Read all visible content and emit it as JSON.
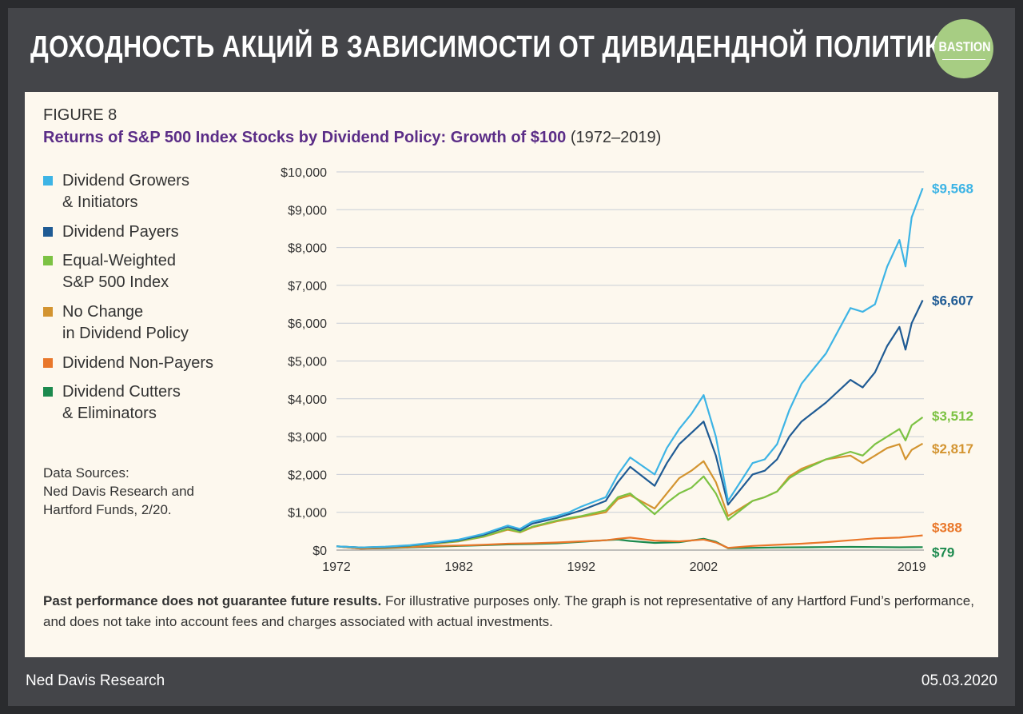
{
  "header": {
    "title": "ДОХОДНОСТЬ АКЦИЙ В ЗАВИСИМОСТИ ОТ ДИВИДЕНДНОЙ ПОЛИТИКИ",
    "logo_text": "BASTION"
  },
  "figure": {
    "label": "FIGURE 8",
    "title": "Returns of S&P 500 Index Stocks by Dividend Policy: Growth of $100",
    "title_range": "(1972–2019)",
    "legend": [
      {
        "line1": "Dividend Growers",
        "line2": "& Initiators",
        "color": "#3db4e5"
      },
      {
        "line1": "Dividend Payers",
        "line2": "",
        "color": "#1f5b94"
      },
      {
        "line1": "Equal-Weighted",
        "line2": "S&P 500 Index",
        "color": "#7cc243"
      },
      {
        "line1": "No Change",
        "line2": "in Dividend Policy",
        "color": "#d39430"
      },
      {
        "line1": "Dividend Non-Payers",
        "line2": "",
        "color": "#e9772a"
      },
      {
        "line1": "Dividend Cutters",
        "line2": "& Eliminators",
        "color": "#1c8a4e"
      }
    ],
    "sources": [
      "Data Sources:",
      "Ned Davis Research and",
      "Hartford Funds, 2/20."
    ],
    "disclaimer_bold": "Past performance does not guarantee future results.",
    "disclaimer_rest": " For illustrative purposes only. The graph is not representative of any Hartford Fund’s performance, and does not take into account fees and charges associated with actual investments."
  },
  "chart_data": {
    "type": "line",
    "title": "Returns of S&P 500 Index Stocks by Dividend Policy: Growth of $100",
    "xlabel": "",
    "ylabel": "",
    "xlim": [
      1972,
      2020
    ],
    "ylim": [
      0,
      10000
    ],
    "x_ticks": [
      1972,
      1982,
      1992,
      2002,
      2019
    ],
    "x_tick_labels": [
      "1972",
      "1982",
      "1992",
      "2002",
      "2019"
    ],
    "y_ticks": [
      0,
      1000,
      2000,
      3000,
      4000,
      5000,
      6000,
      7000,
      8000,
      9000,
      10000
    ],
    "y_tick_labels": [
      "$0",
      "$1,000",
      "$2,000",
      "$3,000",
      "$4,000",
      "$5,000",
      "$6,000",
      "$7,000",
      "$8,000",
      "$9,000",
      "$10,000"
    ],
    "grid": true,
    "legend_position": "left",
    "series": [
      {
        "name": "Dividend Growers & Initiators",
        "color": "#3db4e5",
        "end_label": "$9,568",
        "x": [
          1972,
          1974,
          1976,
          1978,
          1980,
          1982,
          1984,
          1986,
          1987,
          1988,
          1990,
          1991,
          1992,
          1994,
          1995,
          1996,
          1998,
          1999,
          2000,
          2001,
          2002,
          2003,
          2004,
          2006,
          2007,
          2008,
          2009,
          2010,
          2012,
          2014,
          2015,
          2016,
          2017,
          2018,
          2018.5,
          2019,
          2019.9
        ],
        "y": [
          100,
          70,
          90,
          130,
          200,
          280,
          430,
          650,
          560,
          750,
          900,
          1000,
          1150,
          1400,
          2000,
          2450,
          2000,
          2700,
          3200,
          3600,
          4100,
          3000,
          1300,
          2300,
          2400,
          2800,
          3700,
          4400,
          5200,
          6400,
          6300,
          6500,
          7500,
          8200,
          7500,
          8800,
          9568
        ]
      },
      {
        "name": "Dividend Payers",
        "color": "#1f5b94",
        "end_label": "$6,607",
        "x": [
          1972,
          1974,
          1976,
          1978,
          1980,
          1982,
          1984,
          1986,
          1987,
          1988,
          1990,
          1991,
          1992,
          1994,
          1995,
          1996,
          1998,
          1999,
          2000,
          2001,
          2002,
          2003,
          2004,
          2006,
          2007,
          2008,
          2009,
          2010,
          2012,
          2014,
          2015,
          2016,
          2017,
          2018,
          2018.5,
          2019,
          2019.9
        ],
        "y": [
          100,
          70,
          85,
          120,
          190,
          260,
          400,
          620,
          520,
          700,
          850,
          950,
          1050,
          1300,
          1800,
          2200,
          1700,
          2300,
          2800,
          3100,
          3400,
          2500,
          1200,
          2000,
          2100,
          2400,
          3000,
          3400,
          3900,
          4500,
          4300,
          4700,
          5400,
          5900,
          5300,
          6000,
          6607
        ]
      },
      {
        "name": "Equal-Weighted S&P 500 Index",
        "color": "#7cc243",
        "end_label": "$3,512",
        "x": [
          1972,
          1974,
          1976,
          1978,
          1980,
          1982,
          1984,
          1986,
          1987,
          1988,
          1990,
          1991,
          1992,
          1994,
          1995,
          1996,
          1998,
          1999,
          2000,
          2001,
          2002,
          2003,
          2004,
          2006,
          2007,
          2008,
          2009,
          2010,
          2012,
          2014,
          2015,
          2016,
          2017,
          2018,
          2018.5,
          2019,
          2019.9
        ],
        "y": [
          100,
          65,
          80,
          115,
          180,
          240,
          360,
          560,
          480,
          620,
          780,
          850,
          900,
          1050,
          1400,
          1500,
          950,
          1250,
          1500,
          1650,
          1950,
          1500,
          800,
          1300,
          1400,
          1550,
          1900,
          2100,
          2400,
          2600,
          2500,
          2800,
          3000,
          3200,
          2900,
          3300,
          3512
        ]
      },
      {
        "name": "No Change in Dividend Policy",
        "color": "#d39430",
        "end_label": "$2,817",
        "x": [
          1972,
          1974,
          1976,
          1978,
          1980,
          1982,
          1984,
          1986,
          1987,
          1988,
          1990,
          1991,
          1992,
          1994,
          1995,
          1996,
          1998,
          1999,
          2000,
          2001,
          2002,
          2003,
          2004,
          2006,
          2007,
          2008,
          2009,
          2010,
          2012,
          2014,
          2015,
          2016,
          2017,
          2018,
          2018.5,
          2019,
          2019.9
        ],
        "y": [
          100,
          65,
          80,
          110,
          170,
          230,
          350,
          540,
          470,
          600,
          760,
          820,
          880,
          1000,
          1350,
          1450,
          1100,
          1500,
          1900,
          2100,
          2350,
          1800,
          900,
          1300,
          1400,
          1550,
          1950,
          2150,
          2400,
          2500,
          2300,
          2500,
          2700,
          2800,
          2400,
          2650,
          2817
        ]
      },
      {
        "name": "Dividend Non-Payers",
        "color": "#e9772a",
        "end_label": "$388",
        "x": [
          1972,
          1974,
          1976,
          1978,
          1980,
          1982,
          1984,
          1986,
          1988,
          1990,
          1992,
          1994,
          1995,
          1996,
          1998,
          2000,
          2002,
          2003,
          2004,
          2006,
          2008,
          2010,
          2012,
          2014,
          2016,
          2018,
          2019.9
        ],
        "y": [
          100,
          40,
          60,
          80,
          110,
          120,
          140,
          170,
          180,
          200,
          230,
          260,
          300,
          330,
          250,
          230,
          280,
          200,
          60,
          110,
          140,
          170,
          210,
          260,
          310,
          330,
          388
        ]
      },
      {
        "name": "Dividend Cutters & Eliminators",
        "color": "#1c8a4e",
        "end_label": "$79",
        "x": [
          1972,
          1974,
          1976,
          1978,
          1980,
          1982,
          1984,
          1986,
          1988,
          1990,
          1992,
          1994,
          1995,
          1996,
          1998,
          2000,
          2002,
          2003,
          2004,
          2006,
          2008,
          2010,
          2012,
          2014,
          2016,
          2018,
          2019.9
        ],
        "y": [
          100,
          40,
          50,
          70,
          90,
          110,
          130,
          150,
          160,
          180,
          220,
          260,
          280,
          240,
          190,
          210,
          300,
          220,
          50,
          60,
          70,
          75,
          80,
          85,
          80,
          75,
          79
        ]
      }
    ]
  },
  "footer": {
    "source": "Ned Davis Research",
    "date": "05.03.2020"
  }
}
